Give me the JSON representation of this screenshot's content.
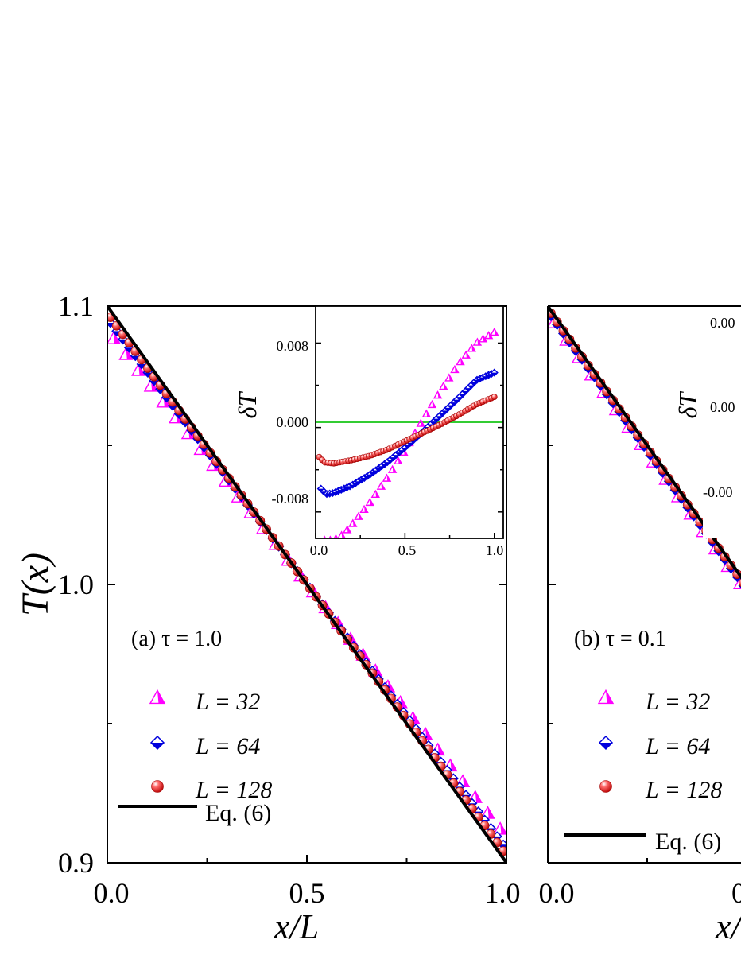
{
  "colors": {
    "L32": "#ff00ff",
    "L64": "#0000dd",
    "L128": "#ee1111",
    "eq6": "#000000",
    "zero_line": "#33cc33"
  },
  "chart_data": [
    {
      "type": "scatter",
      "panel": "a",
      "annotation": "(a) τ = 1.0",
      "xlabel": "x/L",
      "ylabel": "T(x)",
      "xlim": [
        0.0,
        1.0
      ],
      "ylim": [
        0.9,
        1.1
      ],
      "x_ticks": [
        "0.0",
        "0.5",
        "1.0"
      ],
      "y_ticks": [
        "0.9",
        "1.0",
        "1.1"
      ],
      "legend_placement": "bottom-left",
      "series": [
        {
          "name": "L = 32",
          "key": "L32",
          "marker": "triangle",
          "T_left": 1.091,
          "T_right": 0.9091
        },
        {
          "name": "L = 64",
          "key": "L64",
          "marker": "diamond",
          "T_left": 1.0955,
          "T_right": 0.905
        },
        {
          "name": "L = 128",
          "key": "L128",
          "marker": "sphere",
          "T_left": 1.0975,
          "T_right": 0.9027
        },
        {
          "name": "Eq. (6)",
          "key": "eq6",
          "marker": "line",
          "T_left": 1.1,
          "T_right": 0.9
        }
      ],
      "inset": {
        "ylabel": "δT",
        "xlim": [
          0.0,
          1.05
        ],
        "ylim": [
          -0.0105,
          0.0115
        ],
        "x_ticks": [
          "0.0",
          "0.5",
          "1.0"
        ],
        "y_ticks": [
          "-0.008",
          "0.000",
          "0.008"
        ],
        "zero_line": true,
        "series": [
          {
            "key": "L32",
            "marker": "triangle",
            "n": 31,
            "x_points": [
              0.05,
              0.1,
              0.15,
              0.2,
              0.3,
              0.4,
              0.5,
              0.6,
              0.7,
              0.8,
              0.9,
              1.0
            ],
            "y_points": [
              -0.0107,
              -0.0107,
              -0.0102,
              -0.0093,
              -0.0072,
              -0.0048,
              -0.0022,
              0.0007,
              0.0035,
              0.006,
              0.008,
              0.009
            ]
          },
          {
            "key": "L64",
            "marker": "diamond",
            "n": 61,
            "x_points": [
              0.03,
              0.06,
              0.1,
              0.2,
              0.3,
              0.4,
              0.5,
              0.6,
              0.7,
              0.8,
              0.9,
              1.0
            ],
            "y_points": [
              -0.0058,
              -0.0063,
              -0.0062,
              -0.0055,
              -0.0045,
              -0.0033,
              -0.0019,
              -0.0004,
              0.0012,
              0.0028,
              0.0045,
              0.0052
            ]
          },
          {
            "key": "L128",
            "marker": "sphere",
            "n": 61,
            "x_points": [
              0.02,
              0.05,
              0.1,
              0.2,
              0.3,
              0.4,
              0.5,
              0.6,
              0.7,
              0.8,
              0.9,
              1.0
            ],
            "y_points": [
              -0.0028,
              -0.0033,
              -0.0034,
              -0.0031,
              -0.0027,
              -0.0021,
              -0.0013,
              -0.0005,
              0.0003,
              0.0012,
              0.0022,
              0.0029
            ]
          }
        ]
      }
    },
    {
      "type": "scatter",
      "panel": "b",
      "annotation": "(b) τ = 0.1",
      "xlabel": "x/",
      "ylabel": "",
      "xlim": [
        0.0,
        1.0
      ],
      "ylim": [
        0.9,
        1.1
      ],
      "x_ticks": [
        "0.0",
        "0"
      ],
      "legend_placement": "bottom-left",
      "series": [
        {
          "name": "L = 32",
          "key": "L32",
          "marker": "triangle",
          "T_left": 1.097
        },
        {
          "name": "L = 64",
          "key": "L64",
          "marker": "diamond",
          "T_left": 1.098
        },
        {
          "name": "L = 128",
          "key": "L128",
          "marker": "sphere",
          "T_left": 1.099
        },
        {
          "name": "Eq. (6)",
          "key": "eq6",
          "marker": "line",
          "T_left": 1.1
        }
      ],
      "inset": {
        "ylabel": "δT",
        "y_ticks": [
          "0.00",
          "0.00",
          "-0.00"
        ]
      }
    }
  ]
}
